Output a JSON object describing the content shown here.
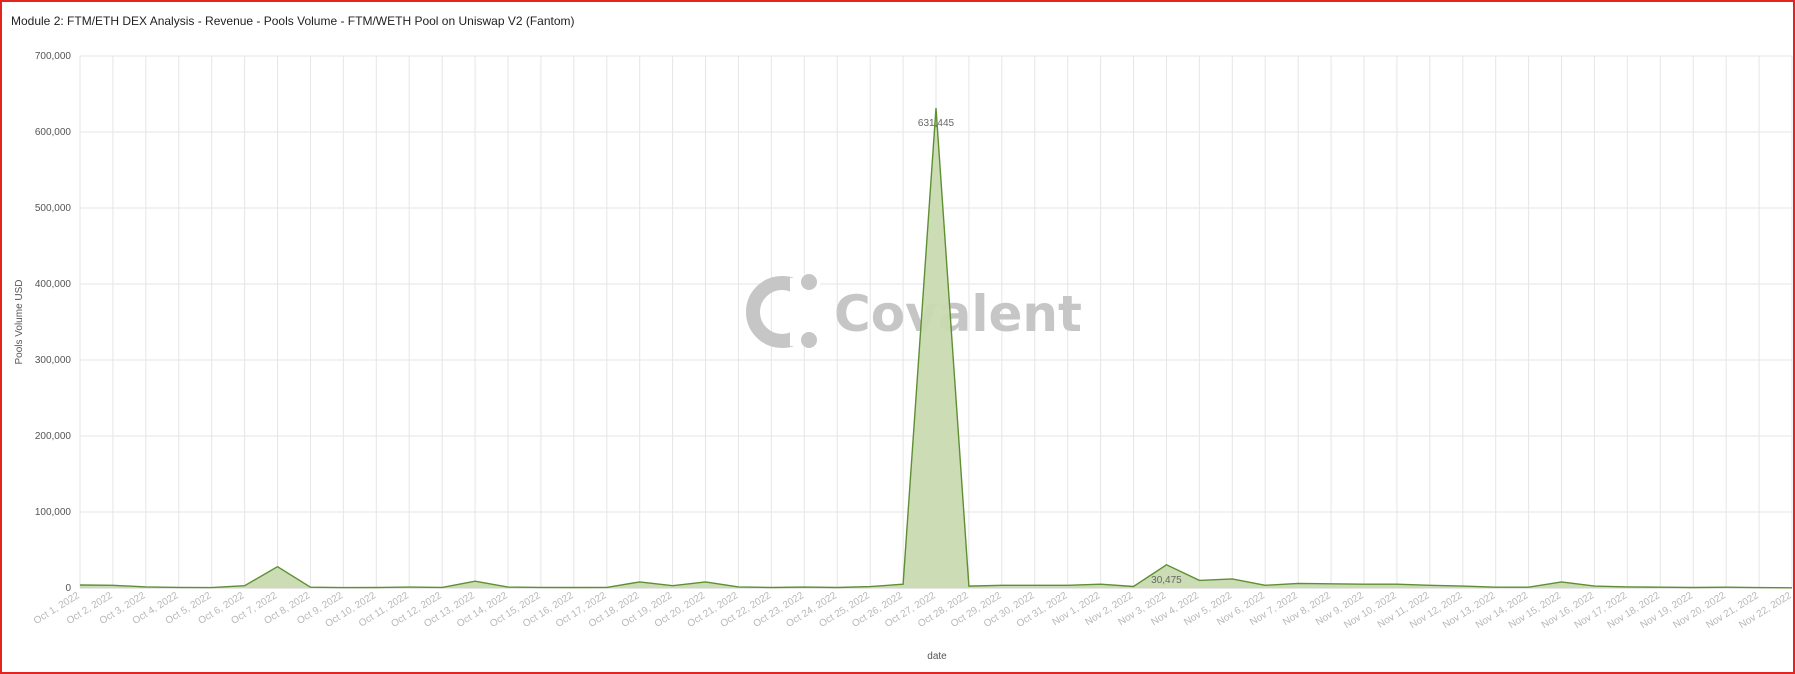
{
  "title": "Module 2: FTM/ETH DEX Analysis - Revenue - Pools Volume - FTM/WETH Pool on Uniswap V2 (Fantom)",
  "watermark": {
    "text": "Covalent"
  },
  "colors": {
    "line": "#5e8f32",
    "fill": "#c9dbb1",
    "grid": "#e6e6e6",
    "border": "#e32420"
  },
  "chart_data": {
    "type": "area",
    "xlabel": "date",
    "ylabel": "Pools Volume USD",
    "ylim": [
      0,
      700000
    ],
    "yticks": [
      0,
      100000,
      200000,
      300000,
      400000,
      500000,
      600000,
      700000
    ],
    "ytick_labels": [
      "0",
      "100,000",
      "200,000",
      "300,000",
      "400,000",
      "500,000",
      "600,000",
      "700,000"
    ],
    "grid": true,
    "x": [
      "Oct 1, 2022",
      "Oct 2, 2022",
      "Oct 3, 2022",
      "Oct 4, 2022",
      "Oct 5, 2022",
      "Oct 6, 2022",
      "Oct 7, 2022",
      "Oct 8, 2022",
      "Oct 9, 2022",
      "Oct 10, 2022",
      "Oct 11, 2022",
      "Oct 12, 2022",
      "Oct 13, 2022",
      "Oct 14, 2022",
      "Oct 15, 2022",
      "Oct 16, 2022",
      "Oct 17, 2022",
      "Oct 18, 2022",
      "Oct 19, 2022",
      "Oct 20, 2022",
      "Oct 21, 2022",
      "Oct 22, 2022",
      "Oct 23, 2022",
      "Oct 24, 2022",
      "Oct 25, 2022",
      "Oct 26, 2022",
      "Oct 27, 2022",
      "Oct 28, 2022",
      "Oct 29, 2022",
      "Oct 30, 2022",
      "Oct 31, 2022",
      "Nov 1, 2022",
      "Nov 2, 2022",
      "Nov 3, 2022",
      "Nov 4, 2022",
      "Nov 5, 2022",
      "Nov 6, 2022",
      "Nov 7, 2022",
      "Nov 8, 2022",
      "Nov 9, 2022",
      "Nov 10, 2022",
      "Nov 11, 2022",
      "Nov 12, 2022",
      "Nov 13, 2022",
      "Nov 14, 2022",
      "Nov 15, 2022",
      "Nov 16, 2022",
      "Nov 17, 2022",
      "Nov 18, 2022",
      "Nov 19, 2022",
      "Nov 20, 2022",
      "Nov 21, 2022",
      "Nov 22, 2022"
    ],
    "series": [
      {
        "values": [
          4000,
          3500,
          1500,
          800,
          500,
          3000,
          28000,
          1000,
          500,
          700,
          1200,
          800,
          9000,
          1200,
          800,
          600,
          800,
          8000,
          3000,
          8000,
          1500,
          600,
          1200,
          600,
          1800,
          5000,
          631445,
          2500,
          3500,
          3500,
          3500,
          5000,
          2000,
          30475,
          10000,
          12000,
          3500,
          6000,
          5500,
          5000,
          5000,
          3500,
          2500,
          1000,
          1000,
          8000,
          2500,
          1500,
          1000,
          700,
          1000,
          500,
          300
        ],
        "labels": [
          {
            "index": 26,
            "text": "631,445"
          },
          {
            "index": 33,
            "text": "30,475"
          }
        ]
      }
    ]
  }
}
